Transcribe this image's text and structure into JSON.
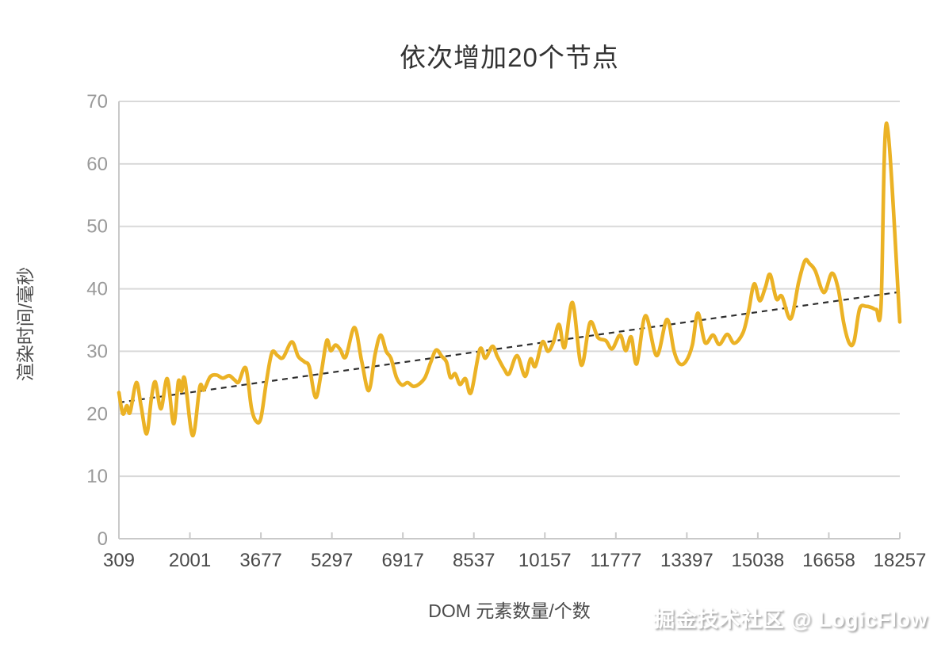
{
  "title": "依次增加20个节点",
  "watermark": "掘金技术社区 @ LogicFlow",
  "colors": {
    "line": "#EBB225",
    "trend": "#2e2e2e",
    "grid": "#d9d9d9",
    "axis": "#c9c9c9",
    "y_tick_label": "#9a9a9a",
    "x_tick_label": "#4a4a4a",
    "background": "#ffffff"
  },
  "chart_data": {
    "type": "line",
    "title": "依次增加20个节点",
    "xlabel": "DOM 元素数量/个数",
    "ylabel": "渲染时间/毫秒",
    "x_ticks": [
      309,
      2001,
      3677,
      5297,
      6917,
      8537,
      10157,
      11777,
      13397,
      15038,
      16658,
      18257
    ],
    "y_ticks": [
      0,
      10,
      20,
      30,
      40,
      50,
      60,
      70
    ],
    "xlim": [
      309,
      18257
    ],
    "ylim": [
      0,
      70
    ],
    "grid": true,
    "legend_position": "none",
    "series": [
      {
        "name": "渲染时间",
        "type": "line",
        "smooth": true,
        "color": "#EBB225",
        "points": [
          [
            309,
            23.4
          ],
          [
            400,
            20.0
          ],
          [
            491,
            21.3
          ],
          [
            564,
            20.2
          ],
          [
            710,
            25.0
          ],
          [
            819,
            21.2
          ],
          [
            947,
            16.8
          ],
          [
            1056,
            22.5
          ],
          [
            1148,
            25.1
          ],
          [
            1275,
            20.8
          ],
          [
            1421,
            25.6
          ],
          [
            1567,
            18.4
          ],
          [
            1676,
            25.2
          ],
          [
            1749,
            23.6
          ],
          [
            1822,
            25.6
          ],
          [
            2004,
            16.5
          ],
          [
            2168,
            24.3
          ],
          [
            2260,
            23.8
          ],
          [
            2405,
            25.9
          ],
          [
            2551,
            26.2
          ],
          [
            2697,
            25.7
          ],
          [
            2843,
            26.1
          ],
          [
            2970,
            25.4
          ],
          [
            3062,
            25.1
          ],
          [
            3226,
            27.3
          ],
          [
            3353,
            21.0
          ],
          [
            3463,
            18.8
          ],
          [
            3572,
            19.3
          ],
          [
            3700,
            25.2
          ],
          [
            3827,
            29.8
          ],
          [
            3955,
            29.3
          ],
          [
            4082,
            29.0
          ],
          [
            4283,
            31.5
          ],
          [
            4429,
            29.2
          ],
          [
            4575,
            28.3
          ],
          [
            4684,
            27.5
          ],
          [
            4830,
            22.6
          ],
          [
            4958,
            26.5
          ],
          [
            5085,
            31.7
          ],
          [
            5176,
            30.1
          ],
          [
            5285,
            31.0
          ],
          [
            5395,
            30.3
          ],
          [
            5522,
            29.1
          ],
          [
            5723,
            33.8
          ],
          [
            5887,
            28.5
          ],
          [
            6051,
            23.7
          ],
          [
            6197,
            29.5
          ],
          [
            6324,
            32.6
          ],
          [
            6452,
            30.0
          ],
          [
            6561,
            28.9
          ],
          [
            6689,
            25.8
          ],
          [
            6816,
            24.6
          ],
          [
            6944,
            25.0
          ],
          [
            7072,
            24.4
          ],
          [
            7199,
            24.7
          ],
          [
            7345,
            25.8
          ],
          [
            7473,
            28.2
          ],
          [
            7600,
            30.2
          ],
          [
            7728,
            29.2
          ],
          [
            7837,
            28.3
          ],
          [
            7928,
            25.8
          ],
          [
            8038,
            26.4
          ],
          [
            8147,
            24.7
          ],
          [
            8275,
            25.6
          ],
          [
            8402,
            23.4
          ],
          [
            8603,
            30.3
          ],
          [
            8730,
            28.9
          ],
          [
            8894,
            30.8
          ],
          [
            9004,
            29.2
          ],
          [
            9168,
            27.1
          ],
          [
            9277,
            26.4
          ],
          [
            9459,
            29.3
          ],
          [
            9642,
            26.0
          ],
          [
            9769,
            28.8
          ],
          [
            9879,
            27.6
          ],
          [
            10043,
            31.5
          ],
          [
            10170,
            30.0
          ],
          [
            10298,
            31.5
          ],
          [
            10426,
            34.3
          ],
          [
            10553,
            30.6
          ],
          [
            10735,
            37.8
          ],
          [
            10936,
            27.8
          ],
          [
            11136,
            34.6
          ],
          [
            11319,
            32.2
          ],
          [
            11501,
            31.7
          ],
          [
            11647,
            30.4
          ],
          [
            11829,
            32.6
          ],
          [
            11957,
            30.1
          ],
          [
            12084,
            32.3
          ],
          [
            12212,
            28.0
          ],
          [
            12412,
            35.7
          ],
          [
            12668,
            29.3
          ],
          [
            12905,
            35.1
          ],
          [
            13069,
            30.0
          ],
          [
            13196,
            28.0
          ],
          [
            13342,
            28.4
          ],
          [
            13488,
            31.0
          ],
          [
            13616,
            36.1
          ],
          [
            13780,
            31.4
          ],
          [
            13962,
            32.6
          ],
          [
            14108,
            31.1
          ],
          [
            14290,
            32.7
          ],
          [
            14454,
            31.3
          ],
          [
            14655,
            33.0
          ],
          [
            14782,
            36.5
          ],
          [
            14910,
            40.8
          ],
          [
            15038,
            38.1
          ],
          [
            15165,
            40.2
          ],
          [
            15275,
            42.3
          ],
          [
            15420,
            38.4
          ],
          [
            15548,
            38.8
          ],
          [
            15749,
            35.2
          ],
          [
            15931,
            41.0
          ],
          [
            16076,
            44.5
          ],
          [
            16186,
            44.0
          ],
          [
            16313,
            42.9
          ],
          [
            16514,
            39.4
          ],
          [
            16696,
            42.5
          ],
          [
            16842,
            40.0
          ],
          [
            16969,
            34.5
          ],
          [
            17097,
            31.3
          ],
          [
            17206,
            31.6
          ],
          [
            17334,
            36.8
          ],
          [
            17480,
            37.2
          ],
          [
            17607,
            37.0
          ],
          [
            17717,
            36.7
          ],
          [
            17826,
            37.3
          ],
          [
            17954,
            66.5
          ],
          [
            18257,
            34.7
          ]
        ]
      },
      {
        "name": "趋势线",
        "type": "line",
        "style": "dashed",
        "smooth": false,
        "color": "#2e2e2e",
        "points": [
          [
            309,
            21.8
          ],
          [
            18257,
            39.5
          ]
        ]
      }
    ]
  }
}
